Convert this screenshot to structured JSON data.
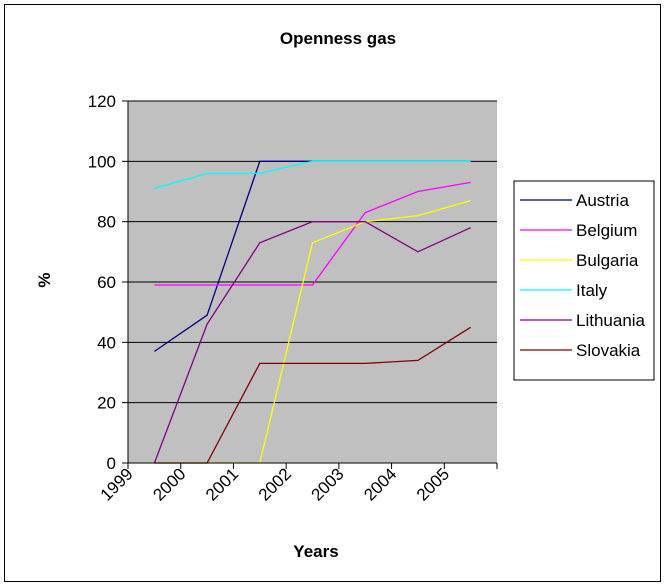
{
  "chart_data": {
    "type": "line",
    "title": "Openness gas",
    "xlabel": "Years",
    "ylabel": "%",
    "categories": [
      "1999",
      "2000",
      "2001",
      "2002",
      "2003",
      "2004",
      "2005"
    ],
    "ylim": [
      0,
      120
    ],
    "yticks": [
      0,
      20,
      40,
      60,
      80,
      100,
      120
    ],
    "grid": "horizontal",
    "plot_background": "#C0C0C0",
    "legend_position": "right",
    "series": [
      {
        "name": "Austria",
        "color": "#000080",
        "values": [
          37,
          49,
          100,
          100,
          100,
          100,
          100
        ]
      },
      {
        "name": "Belgium",
        "color": "#FF00FF",
        "values": [
          59,
          59,
          59,
          59,
          83,
          90,
          93
        ]
      },
      {
        "name": "Bulgaria",
        "color": "#FFFF00",
        "values": [
          0,
          0,
          0,
          73,
          80,
          82,
          87
        ]
      },
      {
        "name": "Italy",
        "color": "#00FFFF",
        "values": [
          91,
          96,
          96,
          100,
          100,
          100,
          100
        ]
      },
      {
        "name": "Lithuania",
        "color": "#800080",
        "values": [
          0,
          46,
          73,
          80,
          80,
          70,
          78
        ]
      },
      {
        "name": "Slovakia",
        "color": "#800000",
        "values": [
          0,
          0,
          33,
          33,
          33,
          34,
          45
        ]
      }
    ]
  }
}
